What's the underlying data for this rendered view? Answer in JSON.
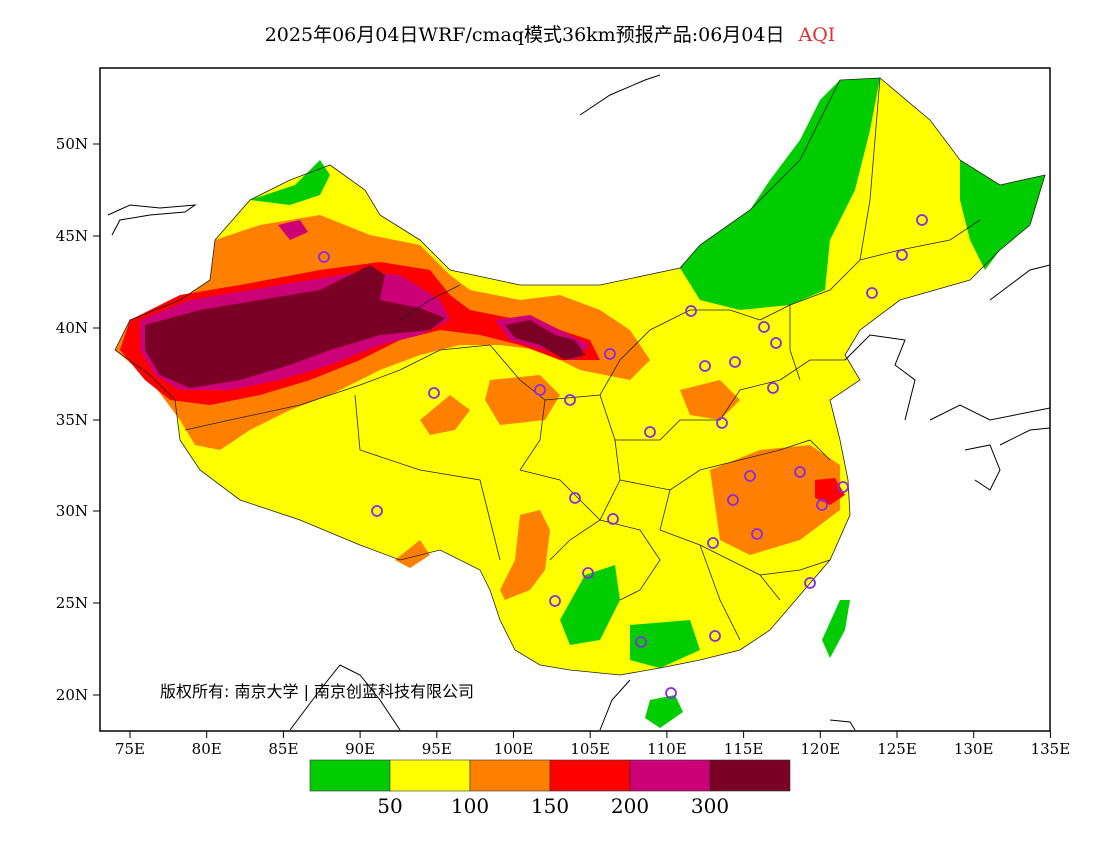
{
  "title": {
    "text": "2025年06月04日WRF/cmaq模式36km预报产品:06月04日",
    "variable": "AQI"
  },
  "axes": {
    "lat_ticks": [
      "50N",
      "45N",
      "40N",
      "35N",
      "30N",
      "25N",
      "20N"
    ],
    "lon_ticks": [
      "75E",
      "80E",
      "85E",
      "90E",
      "95E",
      "100E",
      "105E",
      "110E",
      "115E",
      "120E",
      "125E",
      "130E",
      "135E"
    ]
  },
  "copyright": "版权所有: 南京大学 | 南京创蓝科技有限公司",
  "legend": {
    "colors": [
      "#00cc00",
      "#ffff00",
      "#ff8000",
      "#ff0000",
      "#cc0077",
      "#7a0025"
    ],
    "labels": [
      "50",
      "100",
      "150",
      "200",
      "300"
    ]
  }
}
